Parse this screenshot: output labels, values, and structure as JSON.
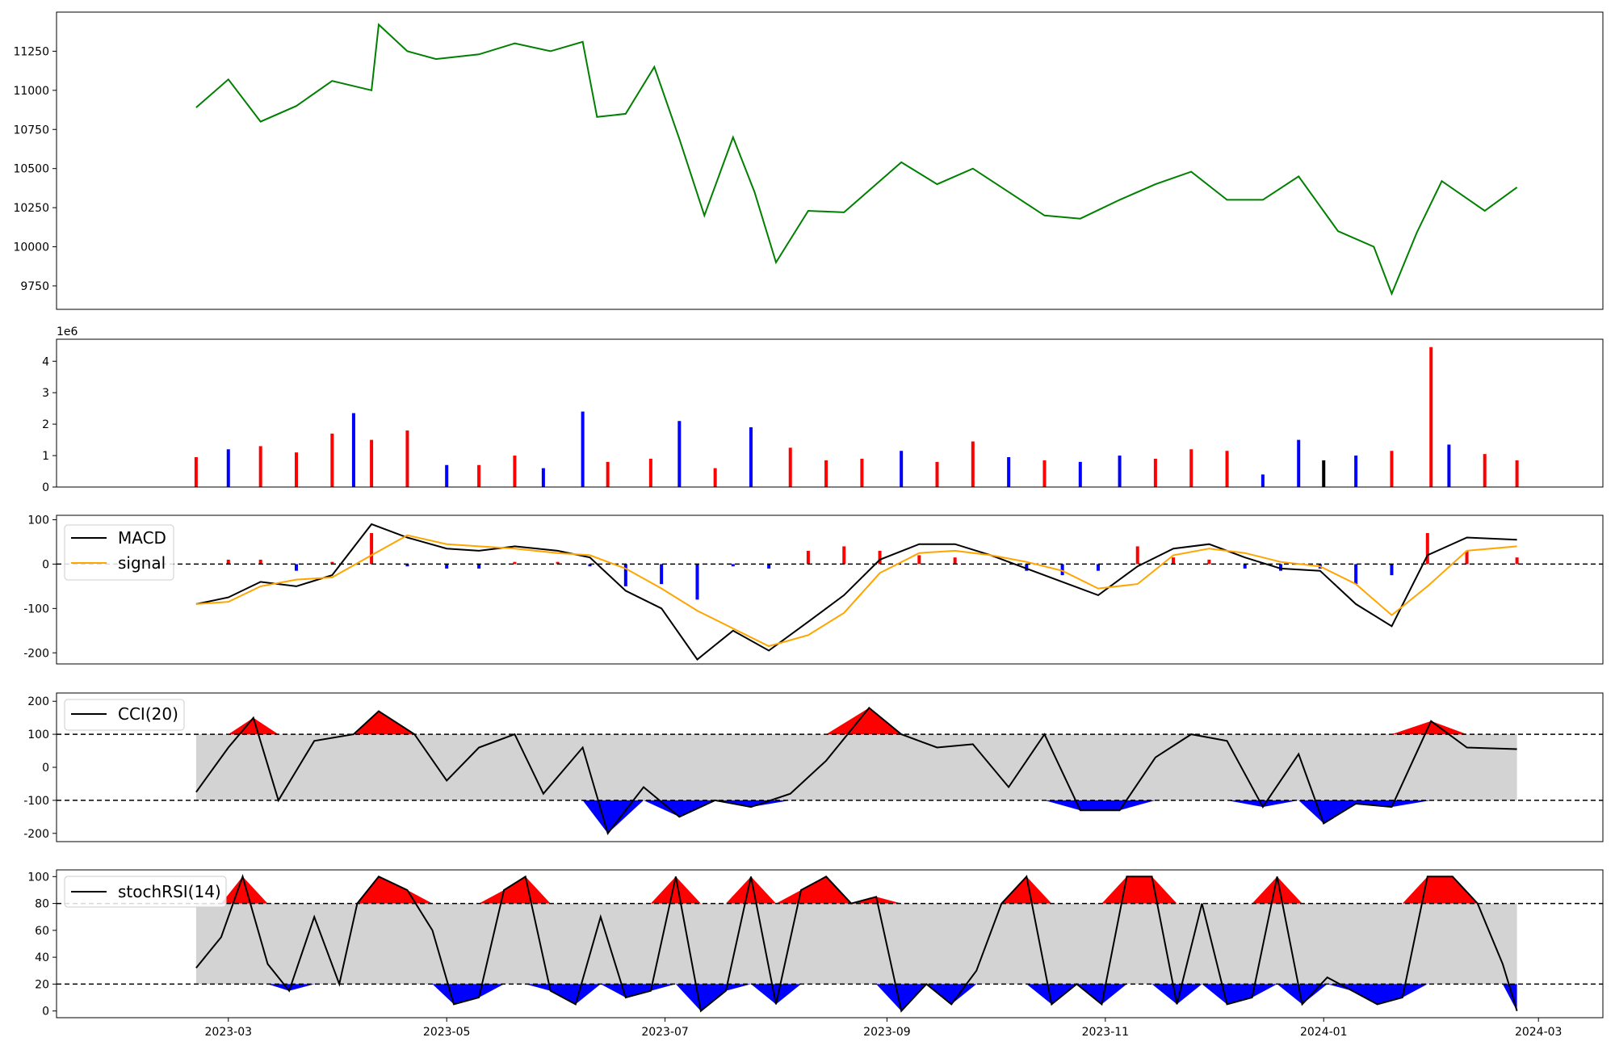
{
  "chart_data": [
    {
      "type": "line",
      "panel": "price",
      "line_color": "#008000",
      "ylim": [
        9600,
        11500
      ],
      "yticks": [
        "9750",
        "10000",
        "10250",
        "10500",
        "10750",
        "11000",
        "11250"
      ],
      "x": [
        "2023-02-20",
        "2023-03-01",
        "2023-03-10",
        "2023-03-20",
        "2023-03-30",
        "2023-04-10",
        "2023-04-12",
        "2023-04-20",
        "2023-04-28",
        "2023-05-10",
        "2023-05-20",
        "2023-05-30",
        "2023-06-08",
        "2023-06-12",
        "2023-06-20",
        "2023-06-28",
        "2023-07-05",
        "2023-07-12",
        "2023-07-20",
        "2023-07-26",
        "2023-08-01",
        "2023-08-10",
        "2023-08-20",
        "2023-08-28",
        "2023-09-05",
        "2023-09-15",
        "2023-09-25",
        "2023-10-05",
        "2023-10-15",
        "2023-10-25",
        "2023-11-05",
        "2023-11-15",
        "2023-11-25",
        "2023-12-05",
        "2023-12-15",
        "2023-12-25",
        "2024-01-05",
        "2024-01-15",
        "2024-01-20",
        "2024-01-27",
        "2024-02-03",
        "2024-02-15",
        "2024-02-24"
      ],
      "y": [
        10890,
        11070,
        10800,
        10900,
        11060,
        11000,
        11420,
        11250,
        11200,
        11230,
        11300,
        11250,
        11310,
        10830,
        10850,
        11150,
        10690,
        10200,
        10700,
        10350,
        9900,
        10230,
        10220,
        10380,
        10540,
        10400,
        10500,
        10350,
        10200,
        10180,
        10300,
        10400,
        10480,
        10300,
        10300,
        10450,
        10100,
        10000,
        9700,
        10090,
        10420,
        10230,
        10380
      ]
    },
    {
      "type": "bar",
      "panel": "volume",
      "multiplier_label": "1e6",
      "ylim": [
        0,
        4.7
      ],
      "yticks": [
        "0",
        "1",
        "2",
        "3",
        "4"
      ],
      "colors": {
        "up": "#ff0000",
        "down": "#0000ff",
        "flat": "#000000"
      },
      "x": [
        "2023-02-20",
        "2023-03-01",
        "2023-03-10",
        "2023-03-20",
        "2023-03-30",
        "2023-04-05",
        "2023-04-10",
        "2023-04-20",
        "2023-05-01",
        "2023-05-10",
        "2023-05-20",
        "2023-05-28",
        "2023-06-08",
        "2023-06-15",
        "2023-06-27",
        "2023-07-05",
        "2023-07-15",
        "2023-07-25",
        "2023-08-05",
        "2023-08-15",
        "2023-08-25",
        "2023-09-05",
        "2023-09-15",
        "2023-09-25",
        "2023-10-05",
        "2023-10-15",
        "2023-10-25",
        "2023-11-05",
        "2023-11-15",
        "2023-11-25",
        "2023-12-05",
        "2023-12-15",
        "2023-12-25",
        "2024-01-01",
        "2024-01-10",
        "2024-01-20",
        "2024-01-31",
        "2024-02-05",
        "2024-02-15",
        "2024-02-24"
      ],
      "values": [
        0.95,
        1.2,
        1.3,
        1.1,
        1.7,
        2.35,
        1.5,
        1.8,
        0.7,
        0.7,
        1.0,
        0.6,
        2.4,
        0.8,
        0.9,
        2.1,
        0.6,
        1.9,
        1.25,
        0.85,
        0.9,
        1.15,
        0.8,
        1.45,
        0.95,
        0.85,
        0.8,
        1.0,
        0.9,
        1.2,
        1.15,
        0.4,
        1.5,
        0.85,
        1.0,
        1.15,
        4.45,
        1.35,
        1.05,
        0.85
      ],
      "dir": [
        "up",
        "down",
        "up",
        "up",
        "up",
        "down",
        "up",
        "up",
        "down",
        "up",
        "up",
        "down",
        "down",
        "up",
        "up",
        "down",
        "up",
        "down",
        "up",
        "up",
        "up",
        "down",
        "up",
        "up",
        "down",
        "up",
        "down",
        "down",
        "up",
        "up",
        "up",
        "down",
        "down",
        "flat",
        "down",
        "up",
        "up",
        "down",
        "up",
        "up"
      ]
    },
    {
      "type": "line",
      "panel": "macd",
      "ylim": [
        -225,
        110
      ],
      "yticks": [
        "-200",
        "-100",
        "0",
        "100"
      ],
      "ref_line": 0,
      "hist_colors": {
        "positive": "#ff0000",
        "negative": "#0000ff"
      },
      "x": [
        "2023-02-20",
        "2023-03-01",
        "2023-03-10",
        "2023-03-20",
        "2023-03-30",
        "2023-04-10",
        "2023-04-20",
        "2023-05-01",
        "2023-05-10",
        "2023-05-20",
        "2023-06-01",
        "2023-06-10",
        "2023-06-20",
        "2023-06-30",
        "2023-07-10",
        "2023-07-20",
        "2023-07-30",
        "2023-08-10",
        "2023-08-20",
        "2023-08-30",
        "2023-09-10",
        "2023-09-20",
        "2023-09-30",
        "2023-10-10",
        "2023-10-20",
        "2023-10-30",
        "2023-11-10",
        "2023-11-20",
        "2023-11-30",
        "2023-12-10",
        "2023-12-20",
        "2023-12-31",
        "2024-01-10",
        "2024-01-20",
        "2024-01-30",
        "2024-02-10",
        "2024-02-24"
      ],
      "series": [
        {
          "name": "MACD",
          "color": "#000000",
          "values": [
            -90,
            -75,
            -40,
            -50,
            -25,
            90,
            60,
            35,
            30,
            40,
            30,
            15,
            -60,
            -100,
            -215,
            -150,
            -195,
            -130,
            -70,
            10,
            45,
            45,
            20,
            -10,
            -40,
            -70,
            -5,
            35,
            45,
            15,
            -10,
            -15,
            -90,
            -140,
            20,
            60,
            55
          ]
        },
        {
          "name": "signal",
          "color": "#ffa500",
          "values": [
            -90,
            -85,
            -50,
            -35,
            -30,
            20,
            65,
            45,
            40,
            35,
            25,
            20,
            -10,
            -55,
            -105,
            -145,
            -185,
            -160,
            -110,
            -20,
            25,
            30,
            20,
            5,
            -15,
            -55,
            -45,
            20,
            35,
            25,
            5,
            -5,
            -45,
            -115,
            -50,
            30,
            40
          ]
        }
      ],
      "histogram": [
        0,
        10,
        10,
        -15,
        5,
        70,
        -5,
        -10,
        -10,
        5,
        5,
        -5,
        -50,
        -45,
        -80,
        -5,
        -10,
        30,
        40,
        30,
        20,
        15,
        0,
        -15,
        -25,
        -15,
        40,
        15,
        10,
        -10,
        -15,
        -10,
        -45,
        -25,
        70,
        30,
        15
      ]
    },
    {
      "type": "area",
      "panel": "cci",
      "ylim": [
        -225,
        225
      ],
      "yticks": [
        "-200",
        "-100",
        "0",
        "100",
        "200"
      ],
      "band": [
        -100,
        100
      ],
      "band_fill": "#d3d3d3",
      "above_fill": "#ff0000",
      "below_fill": "#0000ff",
      "x": [
        "2023-02-20",
        "2023-03-01",
        "2023-03-08",
        "2023-03-15",
        "2023-03-25",
        "2023-04-05",
        "2023-04-12",
        "2023-04-22",
        "2023-05-01",
        "2023-05-10",
        "2023-05-20",
        "2023-05-28",
        "2023-06-08",
        "2023-06-15",
        "2023-06-25",
        "2023-07-05",
        "2023-07-15",
        "2023-07-25",
        "2023-08-05",
        "2023-08-15",
        "2023-08-27",
        "2023-09-05",
        "2023-09-15",
        "2023-09-25",
        "2023-10-05",
        "2023-10-15",
        "2023-10-25",
        "2023-11-05",
        "2023-11-15",
        "2023-11-25",
        "2023-12-05",
        "2023-12-15",
        "2023-12-25",
        "2024-01-01",
        "2024-01-10",
        "2024-01-20",
        "2024-01-31",
        "2024-02-10",
        "2024-02-24"
      ],
      "values": [
        -75,
        60,
        150,
        -100,
        80,
        100,
        170,
        100,
        -40,
        60,
        100,
        -80,
        60,
        -200,
        -60,
        -150,
        -100,
        -120,
        -80,
        20,
        180,
        100,
        60,
        70,
        -60,
        100,
        -130,
        -130,
        30,
        100,
        80,
        -120,
        40,
        -170,
        -110,
        -120,
        140,
        60,
        55
      ]
    },
    {
      "type": "area",
      "panel": "stochrsi",
      "ylim": [
        -5,
        105
      ],
      "yticks": [
        "0",
        "20",
        "40",
        "60",
        "80",
        "100"
      ],
      "band": [
        20,
        80
      ],
      "band_fill": "#d3d3d3",
      "above_fill": "#ff0000",
      "below_fill": "#0000ff",
      "xticks": [
        "2023-03",
        "2023-05",
        "2023-07",
        "2023-09",
        "2023-11",
        "2024-01",
        "2024-03"
      ],
      "x": [
        "2023-02-20",
        "2023-02-27",
        "2023-03-05",
        "2023-03-12",
        "2023-03-18",
        "2023-03-25",
        "2023-04-01",
        "2023-04-06",
        "2023-04-12",
        "2023-04-20",
        "2023-04-27",
        "2023-05-03",
        "2023-05-10",
        "2023-05-17",
        "2023-05-23",
        "2023-05-30",
        "2023-06-06",
        "2023-06-13",
        "2023-06-20",
        "2023-06-27",
        "2023-07-04",
        "2023-07-11",
        "2023-07-18",
        "2023-07-25",
        "2023-08-01",
        "2023-08-08",
        "2023-08-15",
        "2023-08-22",
        "2023-08-29",
        "2023-09-05",
        "2023-09-12",
        "2023-09-19",
        "2023-09-26",
        "2023-10-03",
        "2023-10-10",
        "2023-10-17",
        "2023-10-24",
        "2023-10-31",
        "2023-11-07",
        "2023-11-14",
        "2023-11-21",
        "2023-11-28",
        "2023-12-05",
        "2023-12-12",
        "2023-12-19",
        "2023-12-26",
        "2024-01-02",
        "2024-01-09",
        "2024-01-16",
        "2024-01-23",
        "2024-01-30",
        "2024-02-06",
        "2024-02-13",
        "2024-02-20",
        "2024-02-24"
      ],
      "values": [
        32,
        55,
        100,
        35,
        15,
        70,
        20,
        80,
        100,
        90,
        60,
        5,
        10,
        90,
        100,
        15,
        5,
        70,
        10,
        15,
        100,
        0,
        15,
        100,
        5,
        90,
        100,
        80,
        85,
        0,
        20,
        5,
        30,
        80,
        100,
        5,
        20,
        5,
        100,
        100,
        5,
        80,
        5,
        10,
        100,
        5,
        25,
        15,
        5,
        10,
        100,
        100,
        80,
        35,
        0
      ]
    }
  ],
  "legend": {
    "macd": [
      "MACD",
      "signal"
    ],
    "cci": [
      "CCI(20)"
    ],
    "stochrsi": [
      "stochRSI(14)"
    ]
  }
}
